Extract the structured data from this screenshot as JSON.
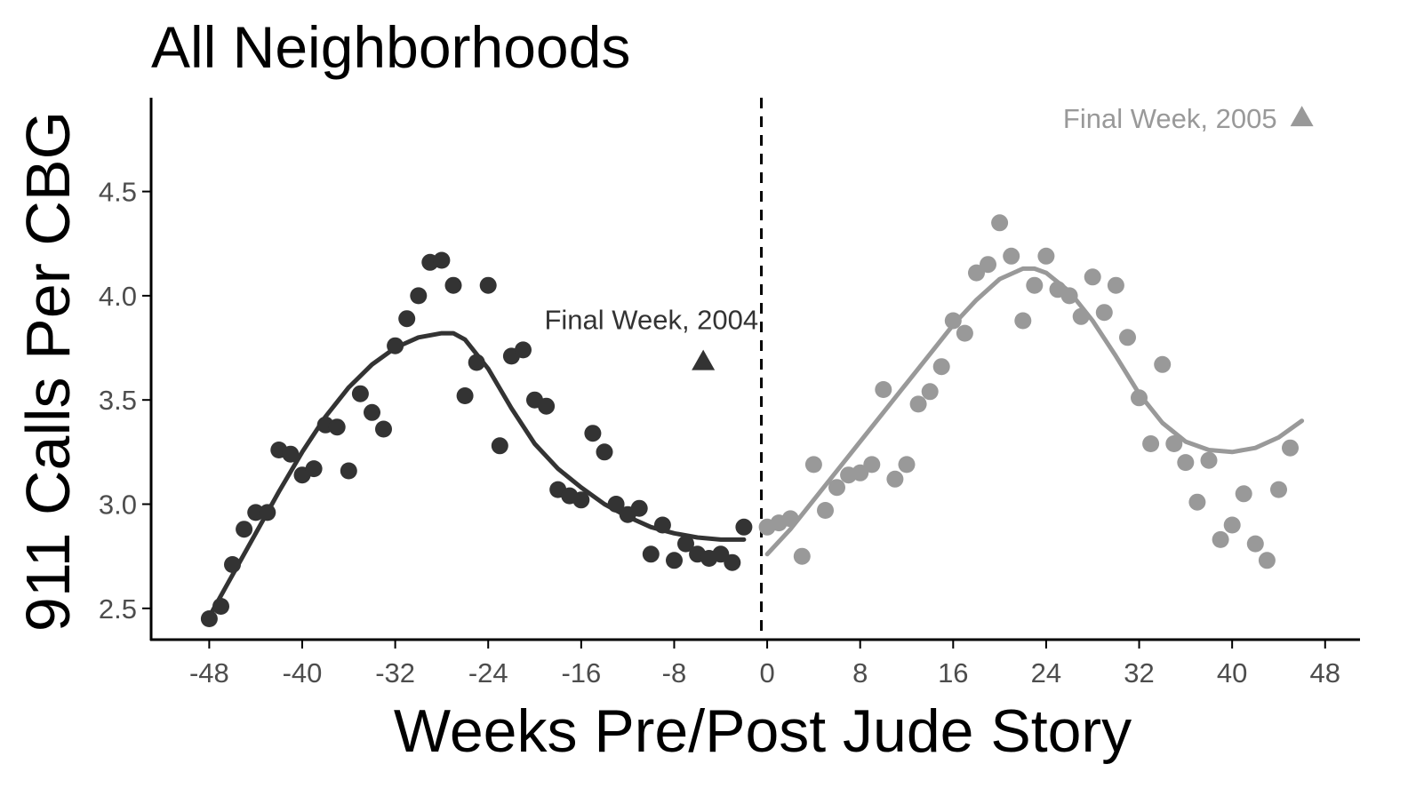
{
  "chart_data": {
    "type": "scatter",
    "title": "All Neighborhoods",
    "xlabel": "Weeks Pre/Post Jude Story",
    "ylabel": "911 Calls Per CBG",
    "xlim": [
      -53,
      51
    ],
    "ylim": [
      2.35,
      4.95
    ],
    "xticks": [
      -48,
      -40,
      -32,
      -24,
      -16,
      -8,
      0,
      8,
      16,
      24,
      32,
      40,
      48
    ],
    "yticks": [
      2.5,
      3.0,
      3.5,
      4.0,
      4.5
    ],
    "grid": false,
    "legend": "none",
    "vline": {
      "x": -0.5,
      "style": "dashed",
      "color": "#000000"
    },
    "colors": {
      "pre": "#333333",
      "post": "#999999",
      "axis": "#000000",
      "tick_text": "#4d4d4d"
    },
    "series": [
      {
        "color": "#333333",
        "points": [
          [
            -48,
            2.45
          ],
          [
            -47,
            2.51
          ],
          [
            -46,
            2.71
          ],
          [
            -45,
            2.88
          ],
          [
            -44,
            2.96
          ],
          [
            -43,
            2.96
          ],
          [
            -42,
            3.26
          ],
          [
            -41,
            3.24
          ],
          [
            -40,
            3.14
          ],
          [
            -39,
            3.17
          ],
          [
            -38,
            3.38
          ],
          [
            -37,
            3.37
          ],
          [
            -36,
            3.16
          ],
          [
            -35,
            3.53
          ],
          [
            -34,
            3.44
          ],
          [
            -33,
            3.36
          ],
          [
            -32,
            3.76
          ],
          [
            -31,
            3.89
          ],
          [
            -30,
            4.0
          ],
          [
            -29,
            4.16
          ],
          [
            -28,
            4.17
          ],
          [
            -27,
            4.05
          ],
          [
            -26,
            3.52
          ],
          [
            -25,
            3.68
          ],
          [
            -24,
            4.05
          ],
          [
            -23,
            3.28
          ],
          [
            -22,
            3.71
          ],
          [
            -21,
            3.74
          ],
          [
            -20,
            3.5
          ],
          [
            -19,
            3.47
          ],
          [
            -18,
            3.07
          ],
          [
            -17,
            3.04
          ],
          [
            -16,
            3.02
          ],
          [
            -15,
            3.34
          ],
          [
            -14,
            3.25
          ],
          [
            -13,
            3.0
          ],
          [
            -12,
            2.95
          ],
          [
            -11,
            2.98
          ],
          [
            -10,
            2.76
          ],
          [
            -9,
            2.9
          ],
          [
            -8,
            2.73
          ],
          [
            -7,
            2.81
          ],
          [
            -6,
            2.76
          ],
          [
            -5,
            2.74
          ],
          [
            -4,
            2.76
          ],
          [
            -3,
            2.72
          ],
          [
            -2,
            2.89
          ]
        ],
        "smooth": [
          [
            -48,
            2.46
          ],
          [
            -46,
            2.66
          ],
          [
            -44,
            2.86
          ],
          [
            -42,
            3.06
          ],
          [
            -40,
            3.25
          ],
          [
            -38,
            3.42
          ],
          [
            -36,
            3.56
          ],
          [
            -34,
            3.67
          ],
          [
            -32,
            3.75
          ],
          [
            -30,
            3.8
          ],
          [
            -28,
            3.82
          ],
          [
            -27,
            3.82
          ],
          [
            -26,
            3.79
          ],
          [
            -24,
            3.65
          ],
          [
            -22,
            3.46
          ],
          [
            -20,
            3.29
          ],
          [
            -18,
            3.17
          ],
          [
            -16,
            3.08
          ],
          [
            -14,
            3.0
          ],
          [
            -12,
            2.94
          ],
          [
            -10,
            2.89
          ],
          [
            -8,
            2.86
          ],
          [
            -6,
            2.84
          ],
          [
            -4,
            2.83
          ],
          [
            -2,
            2.83
          ]
        ]
      },
      {
        "color": "#999999",
        "points": [
          [
            0,
            2.89
          ],
          [
            1,
            2.91
          ],
          [
            2,
            2.93
          ],
          [
            3,
            2.75
          ],
          [
            4,
            3.19
          ],
          [
            5,
            2.97
          ],
          [
            6,
            3.08
          ],
          [
            7,
            3.14
          ],
          [
            8,
            3.15
          ],
          [
            9,
            3.19
          ],
          [
            10,
            3.55
          ],
          [
            11,
            3.12
          ],
          [
            12,
            3.19
          ],
          [
            13,
            3.48
          ],
          [
            14,
            3.54
          ],
          [
            15,
            3.66
          ],
          [
            16,
            3.88
          ],
          [
            17,
            3.82
          ],
          [
            18,
            4.11
          ],
          [
            19,
            4.15
          ],
          [
            20,
            4.35
          ],
          [
            21,
            4.19
          ],
          [
            22,
            3.88
          ],
          [
            23,
            4.05
          ],
          [
            24,
            4.19
          ],
          [
            25,
            4.03
          ],
          [
            26,
            4.0
          ],
          [
            27,
            3.9
          ],
          [
            28,
            4.09
          ],
          [
            29,
            3.92
          ],
          [
            30,
            4.05
          ],
          [
            31,
            3.8
          ],
          [
            32,
            3.51
          ],
          [
            33,
            3.29
          ],
          [
            34,
            3.67
          ],
          [
            35,
            3.29
          ],
          [
            36,
            3.2
          ],
          [
            37,
            3.01
          ],
          [
            38,
            3.21
          ],
          [
            39,
            2.83
          ],
          [
            40,
            2.9
          ],
          [
            41,
            3.05
          ],
          [
            42,
            2.81
          ],
          [
            43,
            2.73
          ],
          [
            44,
            3.07
          ],
          [
            45,
            3.27
          ]
        ],
        "smooth": [
          [
            0,
            2.76
          ],
          [
            2,
            2.88
          ],
          [
            4,
            3.02
          ],
          [
            6,
            3.16
          ],
          [
            8,
            3.3
          ],
          [
            10,
            3.44
          ],
          [
            12,
            3.58
          ],
          [
            14,
            3.72
          ],
          [
            16,
            3.86
          ],
          [
            18,
            3.98
          ],
          [
            20,
            4.08
          ],
          [
            22,
            4.13
          ],
          [
            23,
            4.13
          ],
          [
            24,
            4.11
          ],
          [
            26,
            4.02
          ],
          [
            28,
            3.88
          ],
          [
            30,
            3.71
          ],
          [
            32,
            3.53
          ],
          [
            34,
            3.39
          ],
          [
            36,
            3.3
          ],
          [
            38,
            3.26
          ],
          [
            40,
            3.25
          ],
          [
            42,
            3.27
          ],
          [
            44,
            3.32
          ],
          [
            46,
            3.4
          ]
        ]
      }
    ],
    "annotations": [
      {
        "text": "Final Week, 2004",
        "x": -5.5,
        "y": 3.69,
        "color": "#333333"
      },
      {
        "text": "Final Week, 2005",
        "x": 46,
        "y": 4.86,
        "color": "#999999"
      }
    ]
  }
}
